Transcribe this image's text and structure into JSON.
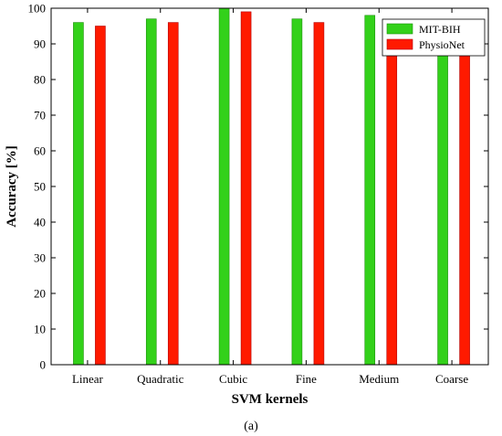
{
  "chart_data": {
    "type": "bar",
    "categories": [
      "Linear",
      "Quadratic",
      "Cubic",
      "Fine",
      "Medium",
      "Coarse"
    ],
    "series": [
      {
        "name": "MIT-BIH",
        "values": [
          96,
          97,
          100,
          97,
          98,
          90
        ],
        "color": "#33d11a"
      },
      {
        "name": "PhysioNet",
        "values": [
          95,
          96,
          99,
          96,
          90,
          90
        ],
        "color": "#ff1a00"
      }
    ],
    "xlabel": "SVM kernels",
    "ylabel": "Accuracy [%]",
    "ylim": [
      0,
      100
    ],
    "yticks": [
      0,
      10,
      20,
      30,
      40,
      50,
      60,
      70,
      80,
      90,
      100
    ],
    "grid": false,
    "legend_position": "top-right"
  },
  "caption": "(a)"
}
